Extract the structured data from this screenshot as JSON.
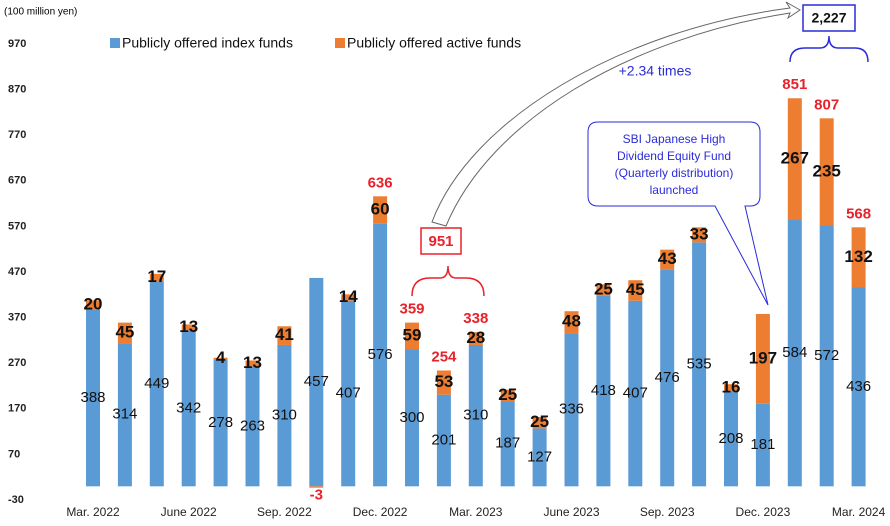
{
  "chart_data": {
    "type": "stacked_bar",
    "unit_label": "(100 million yen)",
    "categories": [
      "Mar. 2022",
      null,
      null,
      "June 2022",
      null,
      null,
      "Sep. 2022",
      null,
      null,
      "Dec. 2022",
      null,
      null,
      "Mar. 2023",
      null,
      null,
      "June 2023",
      null,
      null,
      "Sep. 2023",
      null,
      null,
      "Dec. 2023",
      null,
      null,
      "Mar. 2024"
    ],
    "series": [
      {
        "name": "Publicly offered index funds",
        "color": "#5b9bd5",
        "values": [
          388,
          314,
          449,
          342,
          278,
          263,
          310,
          457,
          407,
          576,
          300,
          201,
          310,
          187,
          127,
          336,
          418,
          407,
          476,
          535,
          208,
          181,
          584,
          572,
          436
        ]
      },
      {
        "name": "Publicly offered active funds",
        "color": "#ed7d31",
        "values": [
          20,
          45,
          17,
          13,
          4,
          13,
          41,
          -3,
          14,
          60,
          59,
          53,
          28,
          25,
          25,
          48,
          25,
          45,
          43,
          33,
          16,
          197,
          267,
          235,
          132
        ]
      }
    ],
    "totals": [
      null,
      null,
      null,
      null,
      null,
      null,
      null,
      null,
      null,
      636,
      359,
      254,
      338,
      null,
      null,
      null,
      null,
      null,
      null,
      null,
      null,
      null,
      851,
      807,
      568
    ],
    "ylim": [
      -30,
      970
    ],
    "yticks": [
      -30,
      70,
      170,
      270,
      370,
      470,
      570,
      670,
      770,
      870,
      970
    ],
    "legend": "top",
    "annotations": {
      "sum_2023": "951",
      "sum_2024": "2,227",
      "ratio": "+2.34 times",
      "callout": [
        "SBI Japanese High",
        "Dividend Equity Fund",
        "(Quarterly distribution)",
        "launched"
      ]
    }
  }
}
